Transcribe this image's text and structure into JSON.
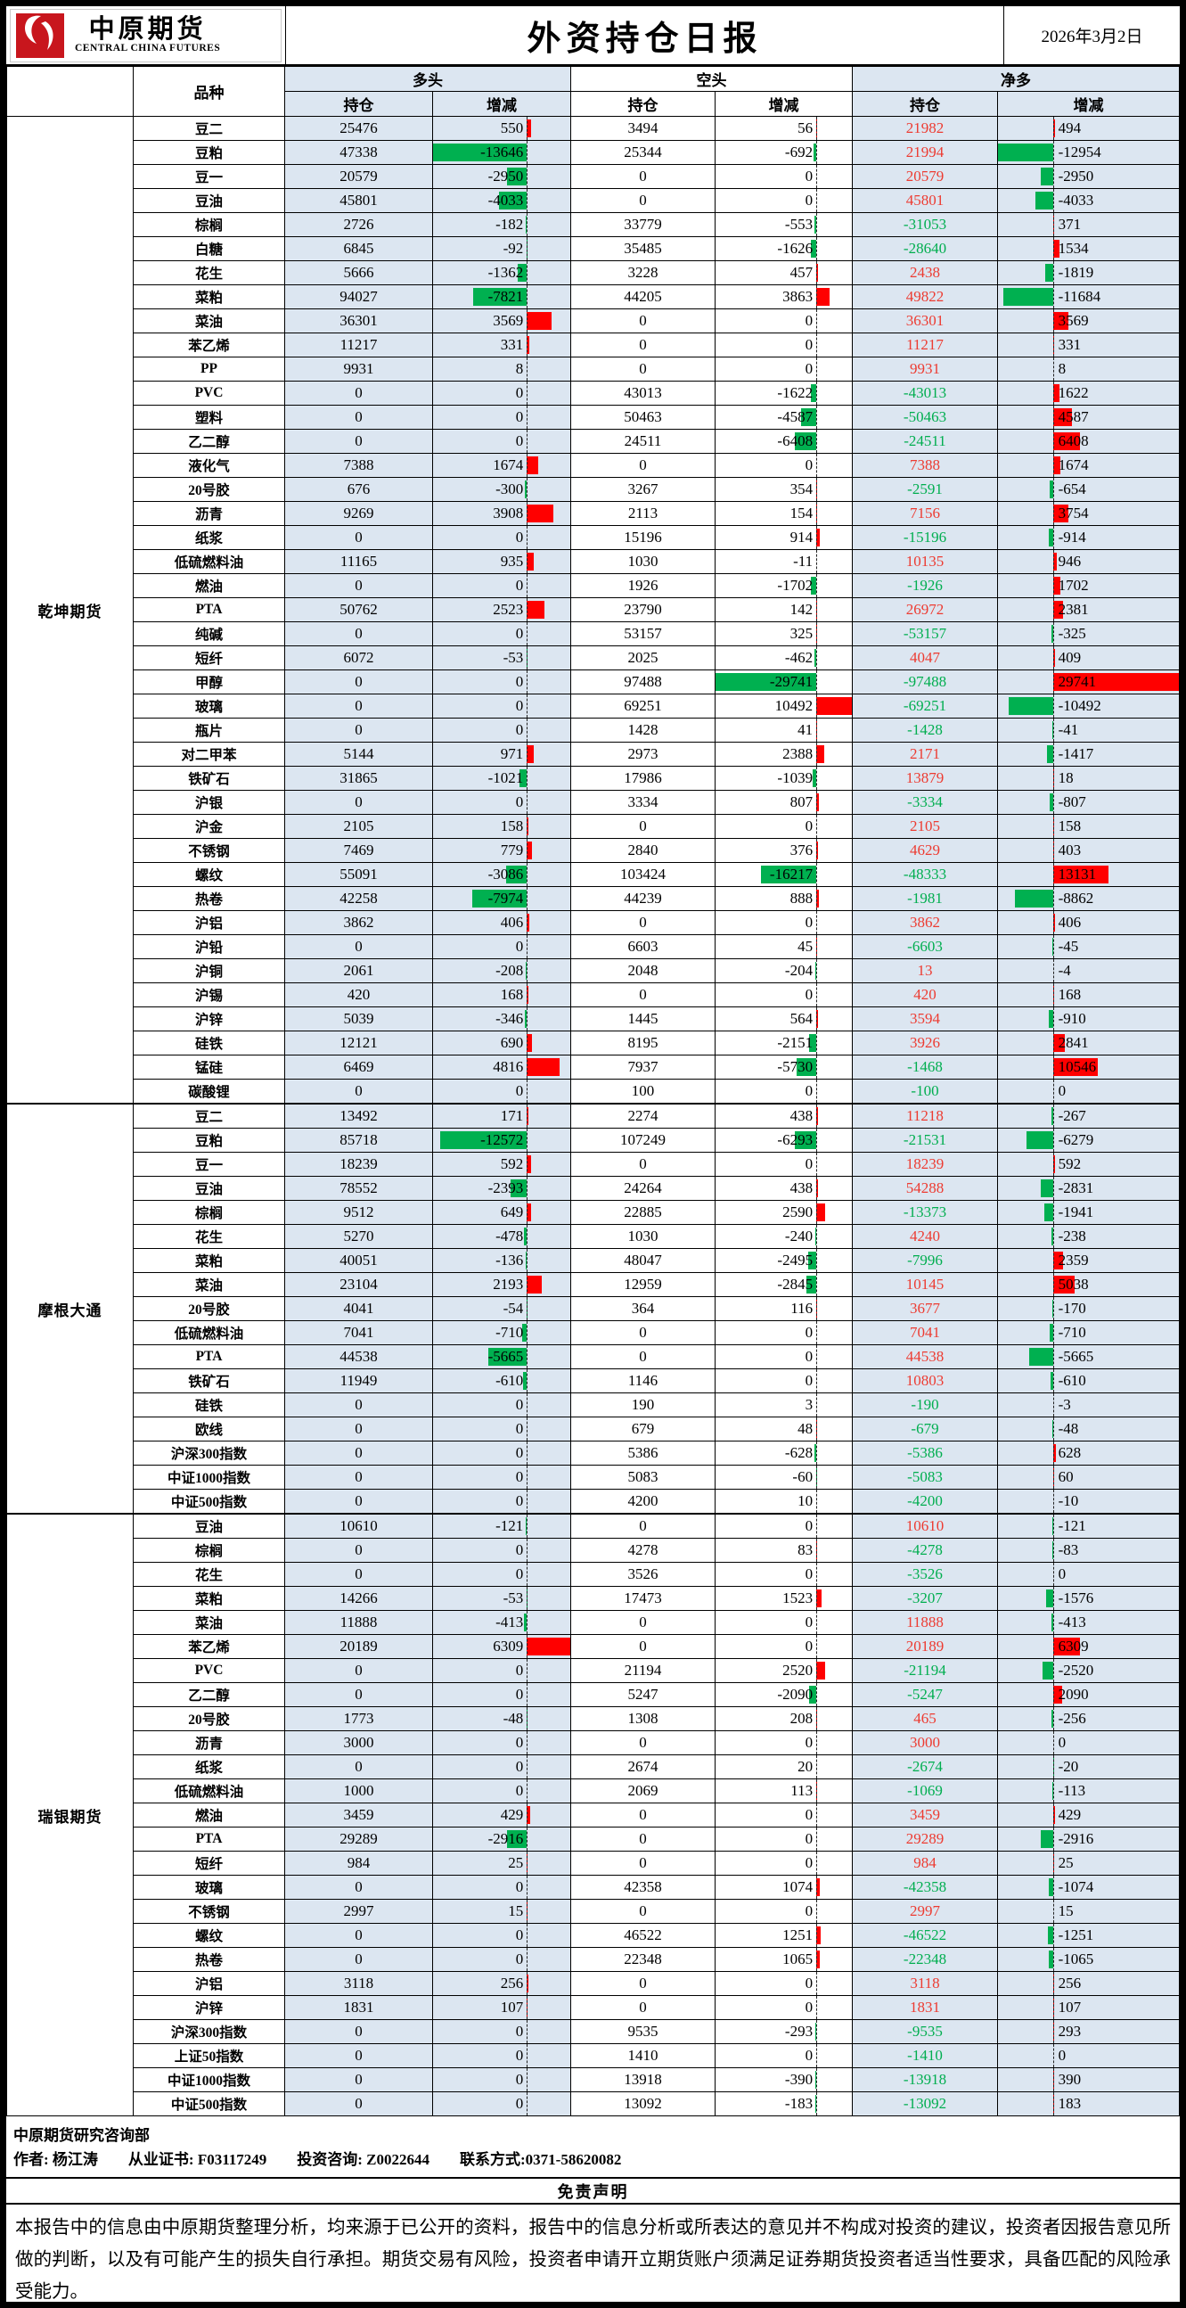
{
  "header": {
    "logo": {
      "brand_cn": "中原期货",
      "brand_en": "CENTRAL CHINA FUTURES"
    },
    "title": "外资持仓日报",
    "date": "2026年3月2日"
  },
  "table": {
    "product_col": "品种",
    "sections": [
      {
        "label": "多头"
      },
      {
        "label": "空头"
      },
      {
        "label": "净多"
      }
    ],
    "subheaders": {
      "position": "持仓",
      "change": "增减"
    },
    "groups": [
      {
        "name": "乾坤期货",
        "rows": [
          [
            "豆二",
            25476,
            550,
            3494,
            56,
            21982,
            494
          ],
          [
            "豆粕",
            47338,
            -13646,
            25344,
            -692,
            21994,
            -12954
          ],
          [
            "豆一",
            20579,
            -2950,
            0,
            0,
            20579,
            -2950
          ],
          [
            "豆油",
            45801,
            -4033,
            0,
            0,
            45801,
            -4033
          ],
          [
            "棕榈",
            2726,
            -182,
            33779,
            -553,
            -31053,
            371
          ],
          [
            "白糖",
            6845,
            -92,
            35485,
            -1626,
            -28640,
            1534
          ],
          [
            "花生",
            5666,
            -1362,
            3228,
            457,
            2438,
            -1819
          ],
          [
            "菜粕",
            94027,
            -7821,
            44205,
            3863,
            49822,
            -11684
          ],
          [
            "菜油",
            36301,
            3569,
            0,
            0,
            36301,
            3569
          ],
          [
            "苯乙烯",
            11217,
            331,
            0,
            0,
            11217,
            331
          ],
          [
            "PP",
            9931,
            8,
            0,
            0,
            9931,
            8
          ],
          [
            "PVC",
            0,
            0,
            43013,
            -1622,
            -43013,
            1622
          ],
          [
            "塑料",
            0,
            0,
            50463,
            -4587,
            -50463,
            4587
          ],
          [
            "乙二醇",
            0,
            0,
            24511,
            -6408,
            -24511,
            6408
          ],
          [
            "液化气",
            7388,
            1674,
            0,
            0,
            7388,
            1674
          ],
          [
            "20号胶",
            676,
            -300,
            3267,
            354,
            -2591,
            -654
          ],
          [
            "沥青",
            9269,
            3908,
            2113,
            154,
            7156,
            3754
          ],
          [
            "纸浆",
            0,
            0,
            15196,
            914,
            -15196,
            -914
          ],
          [
            "低硫燃料油",
            11165,
            935,
            1030,
            -11,
            10135,
            946
          ],
          [
            "燃油",
            0,
            0,
            1926,
            -1702,
            -1926,
            1702
          ],
          [
            "PTA",
            50762,
            2523,
            23790,
            142,
            26972,
            2381
          ],
          [
            "纯碱",
            0,
            0,
            53157,
            325,
            -53157,
            -325
          ],
          [
            "短纤",
            6072,
            -53,
            2025,
            -462,
            4047,
            409
          ],
          [
            "甲醇",
            0,
            0,
            97488,
            -29741,
            -97488,
            29741
          ],
          [
            "玻璃",
            0,
            0,
            69251,
            10492,
            -69251,
            -10492
          ],
          [
            "瓶片",
            0,
            0,
            1428,
            41,
            -1428,
            -41
          ],
          [
            "对二甲苯",
            5144,
            971,
            2973,
            2388,
            2171,
            -1417
          ],
          [
            "铁矿石",
            31865,
            -1021,
            17986,
            -1039,
            13879,
            18
          ],
          [
            "沪银",
            0,
            0,
            3334,
            807,
            -3334,
            -807
          ],
          [
            "沪金",
            2105,
            158,
            0,
            0,
            2105,
            158
          ],
          [
            "不锈钢",
            7469,
            779,
            2840,
            376,
            4629,
            403
          ],
          [
            "螺纹",
            55091,
            -3086,
            103424,
            -16217,
            -48333,
            13131
          ],
          [
            "热卷",
            42258,
            -7974,
            44239,
            888,
            -1981,
            -8862
          ],
          [
            "沪铝",
            3862,
            406,
            0,
            0,
            3862,
            406
          ],
          [
            "沪铅",
            0,
            0,
            6603,
            45,
            -6603,
            -45
          ],
          [
            "沪铜",
            2061,
            -208,
            2048,
            -204,
            13,
            -4
          ],
          [
            "沪锡",
            420,
            168,
            0,
            0,
            420,
            168
          ],
          [
            "沪锌",
            5039,
            -346,
            1445,
            564,
            3594,
            -910
          ],
          [
            "硅铁",
            12121,
            690,
            8195,
            -2151,
            3926,
            2841
          ],
          [
            "锰硅",
            6469,
            4816,
            7937,
            -5730,
            -1468,
            10546
          ],
          [
            "碳酸锂",
            0,
            0,
            100,
            0,
            -100,
            0
          ]
        ]
      },
      {
        "name": "摩根大通",
        "rows": [
          [
            "豆二",
            13492,
            171,
            2274,
            438,
            11218,
            -267
          ],
          [
            "豆粕",
            85718,
            -12572,
            107249,
            -6293,
            -21531,
            -6279
          ],
          [
            "豆一",
            18239,
            592,
            0,
            0,
            18239,
            592
          ],
          [
            "豆油",
            78552,
            -2393,
            24264,
            438,
            54288,
            -2831
          ],
          [
            "棕榈",
            9512,
            649,
            22885,
            2590,
            -13373,
            -1941
          ],
          [
            "花生",
            5270,
            -478,
            1030,
            -240,
            4240,
            -238
          ],
          [
            "菜粕",
            40051,
            -136,
            48047,
            -2495,
            -7996,
            2359
          ],
          [
            "菜油",
            23104,
            2193,
            12959,
            -2845,
            10145,
            5038
          ],
          [
            "20号胶",
            4041,
            -54,
            364,
            116,
            3677,
            -170
          ],
          [
            "低硫燃料油",
            7041,
            -710,
            0,
            0,
            7041,
            -710
          ],
          [
            "PTA",
            44538,
            -5665,
            0,
            0,
            44538,
            -5665
          ],
          [
            "铁矿石",
            11949,
            -610,
            1146,
            0,
            10803,
            -610
          ],
          [
            "硅铁",
            0,
            0,
            190,
            3,
            -190,
            -3
          ],
          [
            "欧线",
            0,
            0,
            679,
            48,
            -679,
            -48
          ],
          [
            "沪深300指数",
            0,
            0,
            5386,
            -628,
            -5386,
            628
          ],
          [
            "中证1000指数",
            0,
            0,
            5083,
            -60,
            -5083,
            60
          ],
          [
            "中证500指数",
            0,
            0,
            4200,
            10,
            -4200,
            -10
          ]
        ]
      },
      {
        "name": "瑞银期货",
        "rows": [
          [
            "豆油",
            10610,
            -121,
            0,
            0,
            10610,
            -121
          ],
          [
            "棕榈",
            0,
            0,
            4278,
            83,
            -4278,
            -83
          ],
          [
            "花生",
            0,
            0,
            3526,
            0,
            -3526,
            0
          ],
          [
            "菜粕",
            14266,
            -53,
            17473,
            1523,
            -3207,
            -1576
          ],
          [
            "菜油",
            11888,
            -413,
            0,
            0,
            11888,
            -413
          ],
          [
            "苯乙烯",
            20189,
            6309,
            0,
            0,
            20189,
            6309
          ],
          [
            "PVC",
            0,
            0,
            21194,
            2520,
            -21194,
            -2520
          ],
          [
            "乙二醇",
            0,
            0,
            5247,
            -2090,
            -5247,
            2090
          ],
          [
            "20号胶",
            1773,
            -48,
            1308,
            208,
            465,
            -256
          ],
          [
            "沥青",
            3000,
            0,
            0,
            0,
            3000,
            0
          ],
          [
            "纸浆",
            0,
            0,
            2674,
            20,
            -2674,
            -20
          ],
          [
            "低硫燃料油",
            1000,
            0,
            2069,
            113,
            -1069,
            -113
          ],
          [
            "燃油",
            3459,
            429,
            0,
            0,
            3459,
            429
          ],
          [
            "PTA",
            29289,
            -2916,
            0,
            0,
            29289,
            -2916
          ],
          [
            "短纤",
            984,
            25,
            0,
            0,
            984,
            25
          ],
          [
            "玻璃",
            0,
            0,
            42358,
            1074,
            -42358,
            -1074
          ],
          [
            "不锈钢",
            2997,
            15,
            0,
            0,
            2997,
            15
          ],
          [
            "螺纹",
            0,
            0,
            46522,
            1251,
            -46522,
            -1251
          ],
          [
            "热卷",
            0,
            0,
            22348,
            1065,
            -22348,
            -1065
          ],
          [
            "沪铝",
            3118,
            256,
            0,
            0,
            3118,
            256
          ],
          [
            "沪锌",
            1831,
            107,
            0,
            0,
            1831,
            107
          ],
          [
            "沪深300指数",
            0,
            0,
            9535,
            -293,
            -9535,
            293
          ],
          [
            "上证50指数",
            0,
            0,
            1410,
            0,
            -1410,
            0
          ],
          [
            "中证1000指数",
            0,
            0,
            13918,
            -390,
            -13918,
            390
          ],
          [
            "中证500指数",
            0,
            0,
            13092,
            -183,
            -13092,
            183
          ]
        ]
      }
    ]
  },
  "footer": {
    "department": "中原期货研究咨询部",
    "author_line": "作者: 杨江涛　　从业证书: F03117249　　投资咨询: Z0022644　　联系方式:0371-58620082",
    "disclaimer_title": "免责声明",
    "disclaimer_body": "本报告中的信息由中原期货整理分析，均来源于已公开的资料，报告中的信息分析或所表达的意见并不构成对投资的建议，投资者因报告意见所做的判断，以及有可能产生的损失自行承担。期货交易有风险，投资者申请开立期货账户须满足证券期货投资者适当性要求，具备匹配的风险承受能力。"
  },
  "colors": {
    "cell_blue": "#DCE6F1",
    "positive_text_red": "#ED3B31",
    "negative_text_green": "#00AE4F",
    "bar_red": "#FF0000",
    "bar_green": "#00B050",
    "logo_red": "#C8161D"
  }
}
